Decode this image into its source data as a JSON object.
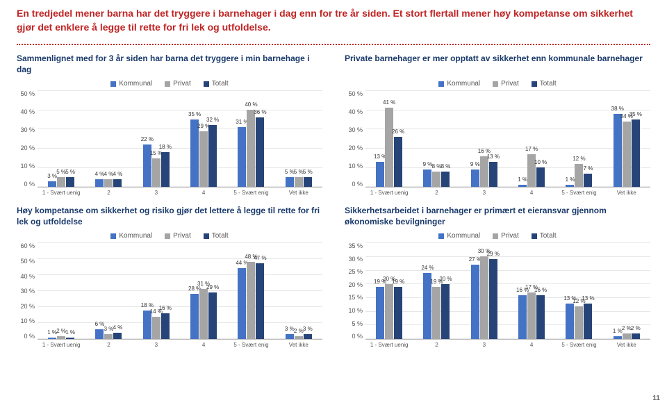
{
  "headline": "En tredjedel mener barna har det tryggere i barnehager i dag enn for tre år siden.\nEt stort flertall mener høy kompetanse om sikkerhet gjør det enklere å legge til rette for fri lek og utfoldelse.",
  "page_number": "11",
  "legend_labels": [
    "Kommunal",
    "Privat",
    "Totalt"
  ],
  "series_colors": [
    "#4472c4",
    "#a5a5a5",
    "#264478"
  ],
  "grid_color": "#e6e6e6",
  "x_labels": [
    "1 - Svært uenig",
    "2",
    "3",
    "4",
    "5 - Svært enig",
    "Vet ikke"
  ],
  "panels": [
    {
      "title": "Sammenlignet med for 3 år siden har barna det tryggere i min barnehage i dag",
      "ymax": 50,
      "ystep": 10,
      "groups": [
        {
          "v": [
            3,
            5,
            5
          ]
        },
        {
          "v": [
            4,
            4,
            4
          ]
        },
        {
          "v": [
            22,
            15,
            18
          ]
        },
        {
          "v": [
            35,
            29,
            32
          ]
        },
        {
          "v": [
            31,
            40,
            36
          ]
        },
        {
          "v": [
            5,
            5,
            5
          ]
        }
      ]
    },
    {
      "title": "Private barnehager er mer opptatt av sikkerhet enn kommunale barnehager",
      "ymax": 50,
      "ystep": 10,
      "groups": [
        {
          "v": [
            13,
            41,
            26
          ]
        },
        {
          "v": [
            9,
            8,
            8
          ]
        },
        {
          "v": [
            9,
            16,
            13
          ]
        },
        {
          "v": [
            1,
            17,
            10
          ]
        },
        {
          "v": [
            1,
            12,
            7
          ]
        },
        {
          "v": [
            38,
            34,
            35
          ]
        }
      ]
    },
    {
      "title": "Høy kompetanse om sikkerhet og risiko gjør det lettere å legge til rette for fri lek og utfoldelse",
      "ymax": 60,
      "ystep": 10,
      "groups": [
        {
          "v": [
            1,
            2,
            1
          ]
        },
        {
          "v": [
            6,
            3,
            4
          ]
        },
        {
          "v": [
            18,
            14,
            16
          ]
        },
        {
          "v": [
            28,
            31,
            29
          ]
        },
        {
          "v": [
            44,
            48,
            47
          ]
        },
        {
          "v": [
            3,
            2,
            3
          ]
        }
      ]
    },
    {
      "title": "Sikkerhetsarbeidet i barnehager er primært et eieransvar gjennom økonomiske bevilgninger",
      "ymax": 35,
      "ystep": 5,
      "groups": [
        {
          "v": [
            19,
            20,
            19
          ]
        },
        {
          "v": [
            24,
            19,
            20
          ]
        },
        {
          "v": [
            27,
            30,
            29
          ]
        },
        {
          "v": [
            16,
            17,
            16
          ]
        },
        {
          "v": [
            13,
            12,
            13
          ]
        },
        {
          "v": [
            1,
            2,
            2
          ]
        }
      ]
    }
  ]
}
